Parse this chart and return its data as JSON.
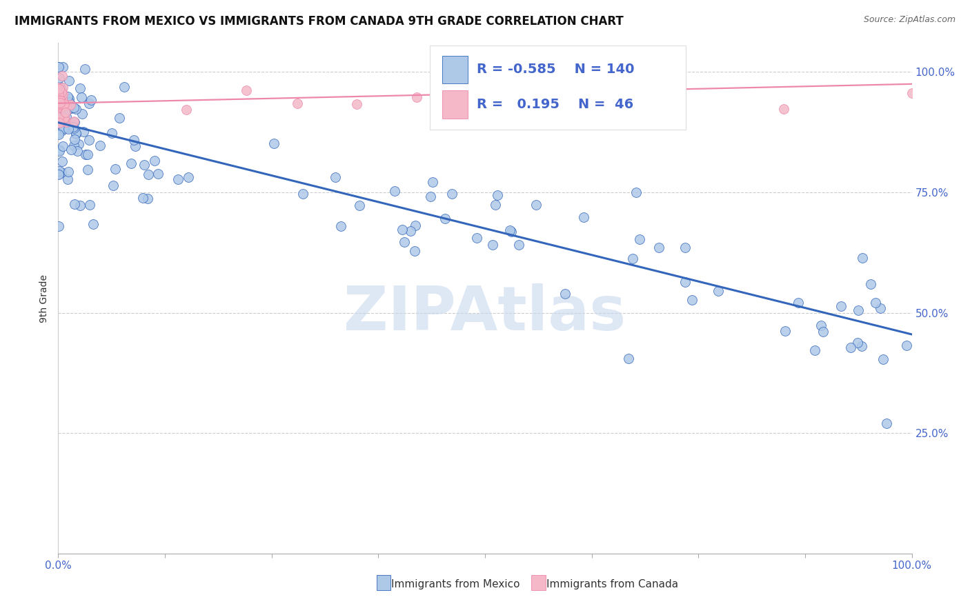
{
  "title": "IMMIGRANTS FROM MEXICO VS IMMIGRANTS FROM CANADA 9TH GRADE CORRELATION CHART",
  "source": "Source: ZipAtlas.com",
  "ylabel": "9th Grade",
  "blue_color": "#aec8e8",
  "pink_color": "#f4b8c8",
  "blue_line_color": "#3366bb",
  "pink_line_color": "#ee88aa",
  "legend_blue_R": "-0.585",
  "legend_blue_N": "140",
  "legend_pink_R": "0.195",
  "legend_pink_N": "46",
  "blue_trend_x0": 0.0,
  "blue_trend_x1": 1.0,
  "blue_trend_y0": 0.895,
  "blue_trend_y1": 0.455,
  "pink_trend_x0": 0.0,
  "pink_trend_x1": 1.0,
  "pink_trend_y0": 0.935,
  "pink_trend_y1": 0.975,
  "watermark_text": "ZIPAtlas",
  "watermark_color": "#c8d8ee",
  "xlim": [
    0.0,
    1.0
  ],
  "ylim": [
    0.0,
    1.06
  ],
  "yticks": [
    0.0,
    0.25,
    0.5,
    0.75,
    1.0
  ],
  "right_ylabels": [
    "",
    "25.0%",
    "50.0%",
    "75.0%",
    "100.0%"
  ],
  "right_ylabel_color": "#4466cc",
  "xtick_left": "0.0%",
  "xtick_right": "100.0%",
  "bottom_legend_blue": "Immigrants from Mexico",
  "bottom_legend_pink": "Immigrants from Canada",
  "title_fontsize": 12,
  "axis_label_fontsize": 10,
  "tick_label_fontsize": 11,
  "legend_fontsize": 14
}
